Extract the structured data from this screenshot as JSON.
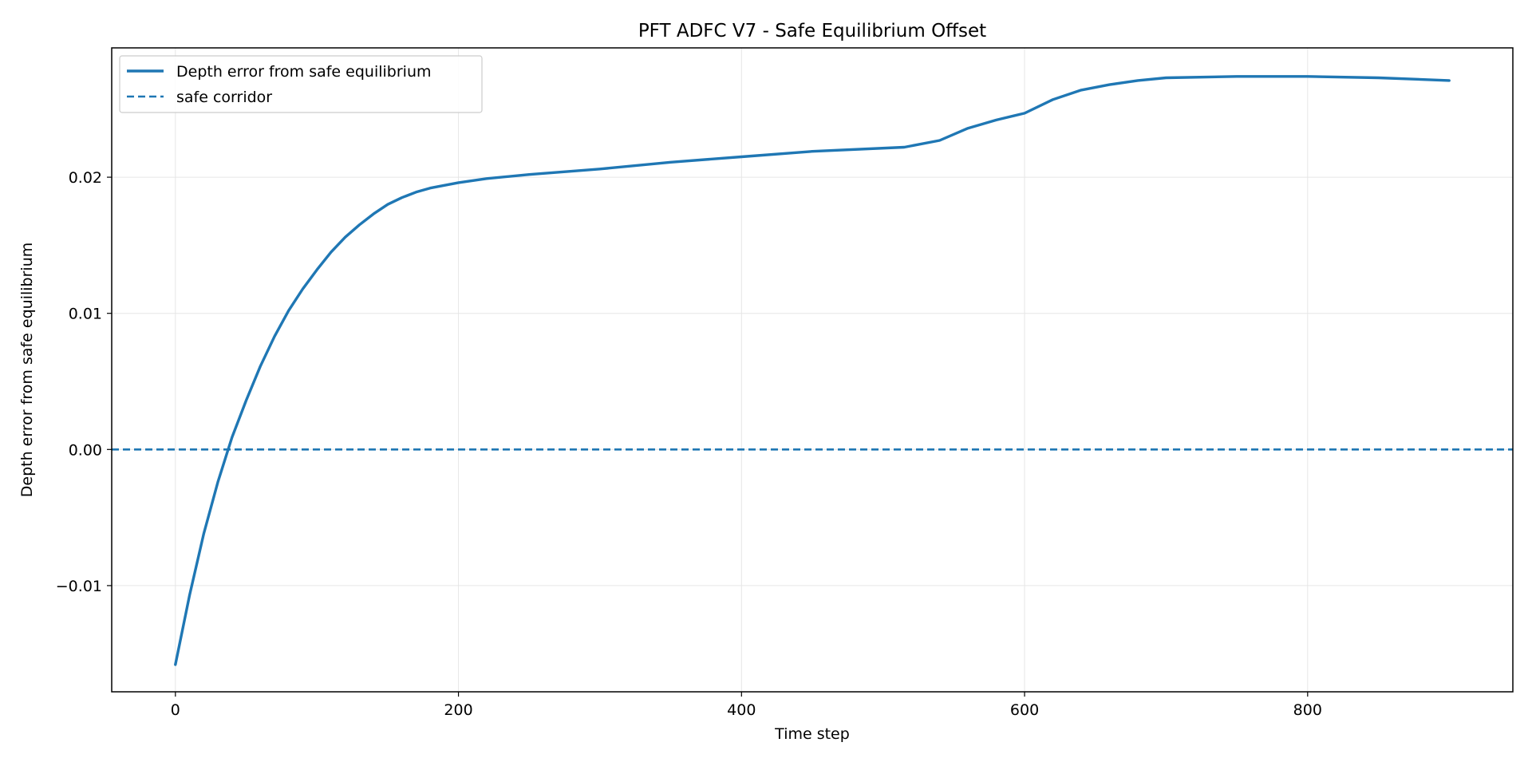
{
  "chart_data": {
    "type": "line",
    "title": "PFT ADFC V7 - Safe Equilibrium Offset",
    "xlabel": "Time step",
    "ylabel": "Depth error from safe equilibrium",
    "xlim": [
      -45,
      945
    ],
    "ylim": [
      -0.0178,
      0.0295
    ],
    "xticks": [
      0,
      200,
      400,
      600,
      800
    ],
    "xtick_labels": [
      "0",
      "200",
      "400",
      "600",
      "800"
    ],
    "yticks": [
      -0.01,
      0.0,
      0.01,
      0.02
    ],
    "ytick_labels": [
      "−0.01",
      "0.00",
      "0.01",
      "0.02"
    ],
    "grid": true,
    "legend_position": "top-left",
    "series": [
      {
        "name": "Depth error from safe equilibrium",
        "style": "solid",
        "color": "#1f77b4",
        "x": [
          0,
          10,
          20,
          30,
          40,
          50,
          60,
          70,
          80,
          90,
          100,
          110,
          120,
          130,
          140,
          150,
          160,
          170,
          180,
          190,
          200,
          220,
          250,
          300,
          350,
          400,
          450,
          515,
          540,
          560,
          580,
          600,
          620,
          640,
          660,
          680,
          700,
          750,
          800,
          850,
          900
        ],
        "y": [
          -0.0158,
          -0.0107,
          -0.0062,
          -0.0024,
          0.0009,
          0.0036,
          0.0061,
          0.0083,
          0.0102,
          0.0118,
          0.0132,
          0.0145,
          0.0156,
          0.0165,
          0.0173,
          0.018,
          0.0185,
          0.0189,
          0.0192,
          0.0194,
          0.0196,
          0.0199,
          0.0202,
          0.0206,
          0.0211,
          0.0215,
          0.0219,
          0.0222,
          0.0227,
          0.0236,
          0.0242,
          0.0247,
          0.0257,
          0.0264,
          0.0268,
          0.0271,
          0.0273,
          0.0274,
          0.0274,
          0.0273,
          0.0271
        ]
      },
      {
        "name": "safe corridor",
        "style": "dashed",
        "color": "#1f77b4",
        "hline": 0.0
      }
    ]
  }
}
